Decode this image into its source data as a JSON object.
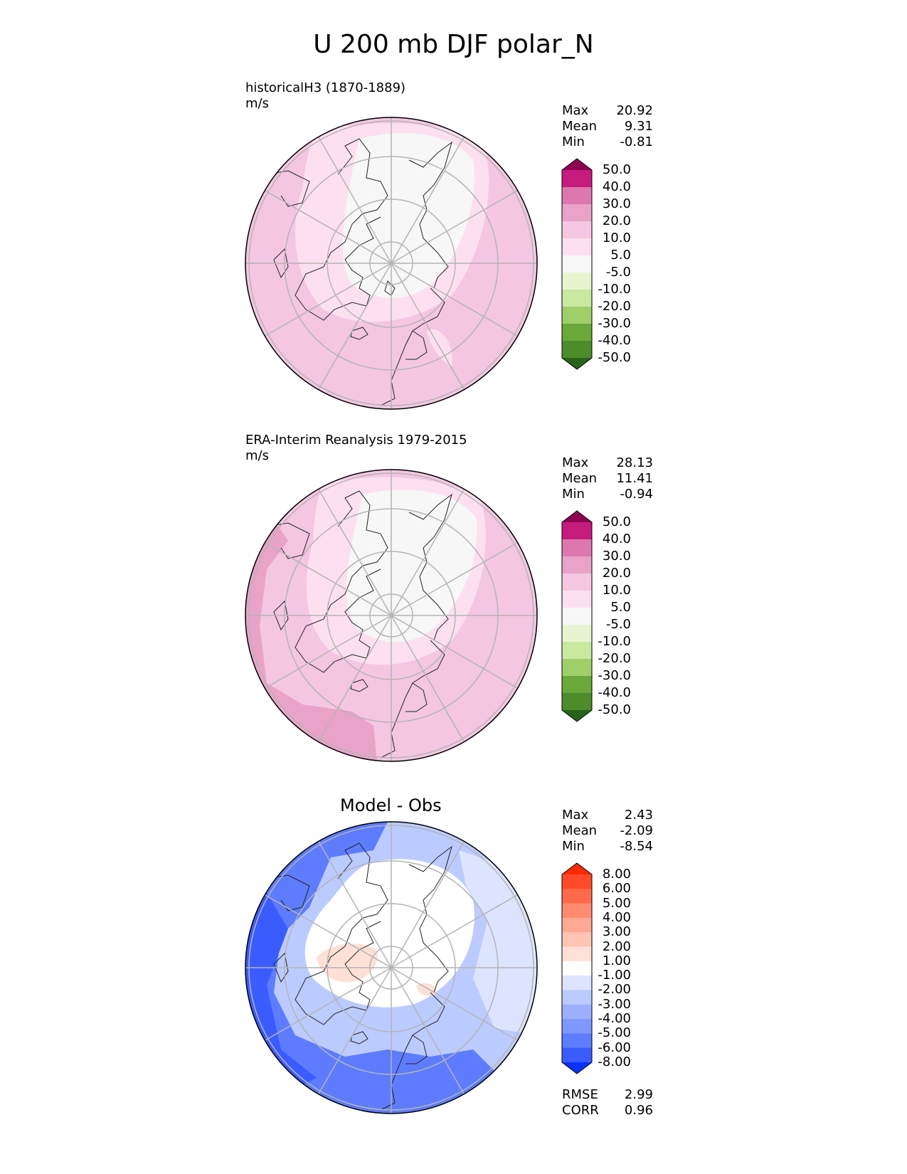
{
  "title": "U 200 mb DJF polar_N",
  "panels": [
    {
      "id": "model",
      "label_line1": "historicalH3 (1870-1889)",
      "label_line2": "m/s",
      "stats": [
        {
          "label": "Max",
          "value": "20.92"
        },
        {
          "label": "Mean",
          "value": "9.31"
        },
        {
          "label": "Min",
          "value": "-0.81"
        }
      ],
      "colorbar": {
        "ticks": [
          "50.0",
          "40.0",
          "30.0",
          "20.0",
          "10.0",
          "5.0",
          "-5.0",
          "-10.0",
          "-20.0",
          "-30.0",
          "-40.0",
          "-50.0"
        ],
        "colors": [
          "#8e0152",
          "#c51b7d",
          "#de77ae",
          "#e9a3c9",
          "#f4c6e2",
          "#fde0ef",
          "#f7f7f7",
          "#e6f5d0",
          "#c9e8a0",
          "#9fcf68",
          "#6aa83a",
          "#4d8c2a",
          "#276419"
        ]
      }
    },
    {
      "id": "obs",
      "label_line1": "ERA-Interim Reanalysis 1979-2015",
      "label_line2": "m/s",
      "stats": [
        {
          "label": "Max",
          "value": "28.13"
        },
        {
          "label": "Mean",
          "value": "11.41"
        },
        {
          "label": "Min",
          "value": "-0.94"
        }
      ],
      "colorbar": {
        "ticks": [
          "50.0",
          "40.0",
          "30.0",
          "20.0",
          "10.0",
          "5.0",
          "-5.0",
          "-10.0",
          "-20.0",
          "-30.0",
          "-40.0",
          "-50.0"
        ],
        "colors": [
          "#8e0152",
          "#c51b7d",
          "#de77ae",
          "#e9a3c9",
          "#f4c6e2",
          "#fde0ef",
          "#f7f7f7",
          "#e6f5d0",
          "#c9e8a0",
          "#9fcf68",
          "#6aa83a",
          "#4d8c2a",
          "#276419"
        ]
      }
    },
    {
      "id": "diff",
      "title": "Model - Obs",
      "stats": [
        {
          "label": "Max",
          "value": "2.43"
        },
        {
          "label": "Mean",
          "value": "-2.09"
        },
        {
          "label": "Min",
          "value": "-8.54"
        }
      ],
      "metrics": [
        {
          "label": "RMSE",
          "value": "2.99"
        },
        {
          "label": "CORR",
          "value": "0.96"
        }
      ],
      "colorbar": {
        "ticks": [
          "8.00",
          "6.00",
          "5.00",
          "4.00",
          "3.00",
          "2.00",
          "1.00",
          "-1.00",
          "-2.00",
          "-3.00",
          "-4.00",
          "-5.00",
          "-6.00",
          "-8.00"
        ],
        "colors": [
          "#ff2a00",
          "#ff4a2a",
          "#ff6a4a",
          "#ff8c70",
          "#ffa893",
          "#ffc4b4",
          "#ffe0d6",
          "#ffffff",
          "#dce4ff",
          "#bccbff",
          "#9cb0ff",
          "#7f98ff",
          "#5d7cff",
          "#3a5cff",
          "#0a32ff"
        ]
      }
    }
  ],
  "chart_data": [
    {
      "type": "heatmap",
      "title": "historicalH3 (1870-1889)",
      "units": "m/s",
      "projection": "north polar stereographic",
      "stats": {
        "max": 20.92,
        "mean": 9.31,
        "min": -0.81
      },
      "levels": [
        -50,
        -40,
        -30,
        -20,
        -10,
        -5,
        5,
        10,
        20,
        30,
        40,
        50
      ]
    },
    {
      "type": "heatmap",
      "title": "ERA-Interim Reanalysis 1979-2015",
      "units": "m/s",
      "projection": "north polar stereographic",
      "stats": {
        "max": 28.13,
        "mean": 11.41,
        "min": -0.94
      },
      "levels": [
        -50,
        -40,
        -30,
        -20,
        -10,
        -5,
        5,
        10,
        20,
        30,
        40,
        50
      ]
    },
    {
      "type": "heatmap",
      "title": "Model - Obs",
      "projection": "north polar stereographic",
      "stats": {
        "max": 2.43,
        "mean": -2.09,
        "min": -8.54,
        "rmse": 2.99,
        "corr": 0.96
      },
      "levels": [
        -8,
        -6,
        -5,
        -4,
        -3,
        -2,
        -1,
        1,
        2,
        3,
        4,
        5,
        6,
        8
      ]
    }
  ]
}
